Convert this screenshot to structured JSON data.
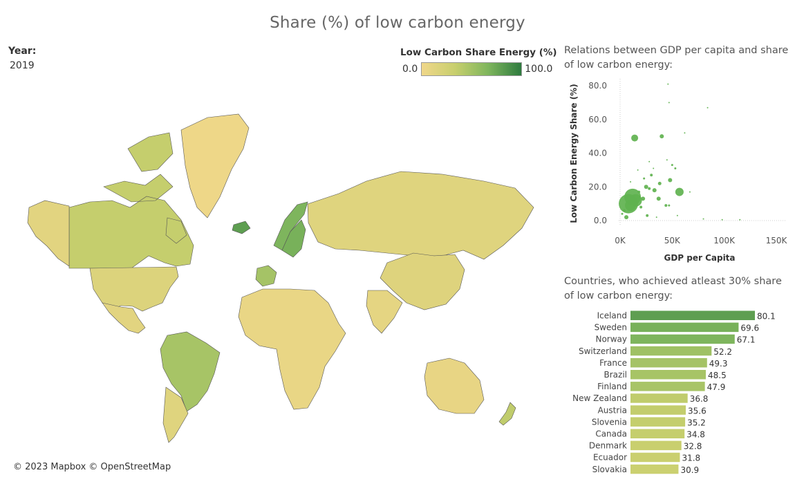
{
  "title": "Share (%) of low carbon energy",
  "year": {
    "label": "Year:",
    "value": "2019"
  },
  "legend": {
    "title": "Low Carbon Share Energy (%)",
    "min": "0.0",
    "max": "100.0",
    "colors": [
      "#f0d78a",
      "#c8cf6e",
      "#7fb65d",
      "#2e7b3f"
    ]
  },
  "map": {
    "copyright": "© 2023 Mapbox © OpenStreetMap",
    "countries": [
      {
        "name": "Greenland",
        "value": 2
      },
      {
        "name": "Canada",
        "value": 34.8
      },
      {
        "name": "Alaska (USA)",
        "value": 12
      },
      {
        "name": "USA",
        "value": 17
      },
      {
        "name": "Mexico",
        "value": 12
      },
      {
        "name": "Brazil",
        "value": 48.5
      },
      {
        "name": "Argentina",
        "value": 14
      },
      {
        "name": "Iceland",
        "value": 80.1
      },
      {
        "name": "Norway",
        "value": 67.1
      },
      {
        "name": "Sweden",
        "value": 69.6
      },
      {
        "name": "France",
        "value": 49.3
      },
      {
        "name": "Russia",
        "value": 14
      },
      {
        "name": "China",
        "value": 15
      },
      {
        "name": "India",
        "value": 9
      },
      {
        "name": "Africa",
        "value": 6
      },
      {
        "name": "Australia",
        "value": 7
      },
      {
        "name": "New Zealand",
        "value": 36.8
      }
    ]
  },
  "scatter": {
    "title": "Relations between GDP per capita and share of low carbon energy:",
    "xlabel": "GDP per Capita",
    "ylabel": "Low Carbon Energy Share (%)"
  },
  "barchart": {
    "title": "Countries, who achieved atleast 30% share of low carbon energy:"
  },
  "chart_data": [
    {
      "type": "scatter",
      "title": "Relations between GDP per capita and share of low carbon energy:",
      "xlabel": "GDP per Capita",
      "ylabel": "Low Carbon Energy Share (%)",
      "xlim": [
        0,
        150000
      ],
      "ylim": [
        0,
        80
      ],
      "xticks": [
        "0K",
        "50K",
        "100K",
        "150K"
      ],
      "yticks": [
        "0.0",
        "20.0",
        "40.0",
        "60.0",
        "80.0"
      ],
      "grid": true,
      "points": [
        {
          "x": 8000,
          "y": 10,
          "size": 14
        },
        {
          "x": 12000,
          "y": 14,
          "size": 12
        },
        {
          "x": 15000,
          "y": 12,
          "size": 9
        },
        {
          "x": 10000,
          "y": 9,
          "size": 8
        },
        {
          "x": 14000,
          "y": 49,
          "size": 5
        },
        {
          "x": 40000,
          "y": 50,
          "size": 3
        },
        {
          "x": 46000,
          "y": 81,
          "size": 1
        },
        {
          "x": 47000,
          "y": 70,
          "size": 1
        },
        {
          "x": 84000,
          "y": 67,
          "size": 1
        },
        {
          "x": 62000,
          "y": 52,
          "size": 1
        },
        {
          "x": 57000,
          "y": 17,
          "size": 6
        },
        {
          "x": 48000,
          "y": 24,
          "size": 3
        },
        {
          "x": 38000,
          "y": 22,
          "size": 2.5
        },
        {
          "x": 37000,
          "y": 13,
          "size": 3
        },
        {
          "x": 44000,
          "y": 9,
          "size": 2
        },
        {
          "x": 28000,
          "y": 19,
          "size": 2
        },
        {
          "x": 30000,
          "y": 27,
          "size": 2
        },
        {
          "x": 25000,
          "y": 20,
          "size": 3
        },
        {
          "x": 33000,
          "y": 18,
          "size": 3
        },
        {
          "x": 22000,
          "y": 13,
          "size": 3
        },
        {
          "x": 20000,
          "y": 8,
          "size": 2
        },
        {
          "x": 18000,
          "y": 17,
          "size": 2
        },
        {
          "x": 6000,
          "y": 2,
          "size": 3
        },
        {
          "x": 2000,
          "y": 4,
          "size": 1.5
        },
        {
          "x": 4000,
          "y": 6,
          "size": 2
        },
        {
          "x": 26000,
          "y": 3,
          "size": 2
        },
        {
          "x": 32000,
          "y": 31,
          "size": 1
        },
        {
          "x": 28000,
          "y": 35,
          "size": 1
        },
        {
          "x": 45000,
          "y": 36,
          "size": 1
        },
        {
          "x": 50000,
          "y": 33,
          "size": 1.5
        },
        {
          "x": 53000,
          "y": 31,
          "size": 1.5
        },
        {
          "x": 67000,
          "y": 17,
          "size": 1
        },
        {
          "x": 80000,
          "y": 1,
          "size": 1
        },
        {
          "x": 98000,
          "y": 0.5,
          "size": 1
        },
        {
          "x": 115000,
          "y": 0.5,
          "size": 1
        },
        {
          "x": 17000,
          "y": 30,
          "size": 1
        },
        {
          "x": 23000,
          "y": 25,
          "size": 1.5
        },
        {
          "x": 10000,
          "y": 23,
          "size": 1
        },
        {
          "x": 35000,
          "y": 2,
          "size": 1
        },
        {
          "x": 47000,
          "y": 9,
          "size": 1.5
        },
        {
          "x": 55000,
          "y": 3,
          "size": 1
        }
      ]
    },
    {
      "type": "bar",
      "orientation": "horizontal",
      "title": "Countries, who achieved atleast 30% share of low carbon energy:",
      "categories": [
        "Iceland",
        "Sweden",
        "Norway",
        "Switzerland",
        "France",
        "Brazil",
        "Finland",
        "New Zealand",
        "Austria",
        "Slovenia",
        "Canada",
        "Denmark",
        "Ecuador",
        "Slovakia"
      ],
      "values": [
        80.1,
        69.6,
        67.1,
        52.2,
        49.3,
        48.5,
        47.9,
        36.8,
        35.6,
        35.2,
        34.8,
        32.8,
        31.8,
        30.9
      ],
      "labels": [
        "80.1",
        "69.6",
        "67.1",
        "52.2",
        "49.3",
        "48.5",
        "47.9",
        "36.8",
        "35.6",
        "35.2",
        "34.8",
        "32.8",
        "31.8",
        "30.9"
      ]
    }
  ]
}
